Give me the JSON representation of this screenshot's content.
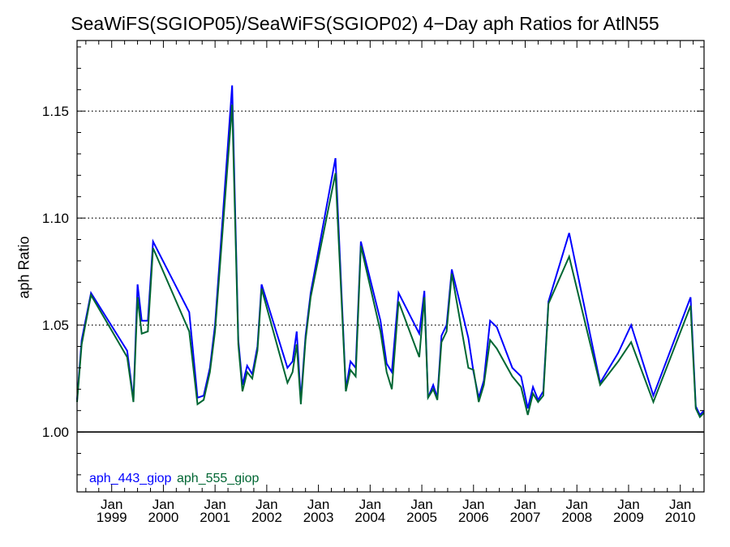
{
  "chart_data": {
    "type": "line",
    "title": "SeaWiFS(SGIOP05)/SeaWiFS(SGIOP02) 4−Day aph Ratios for AtlN55",
    "xlabel": "",
    "ylabel": "aph Ratio",
    "ylim": [
      0.972,
      1.183
    ],
    "xlim": [
      1998.33,
      2010.46
    ],
    "yticks": [
      1.0,
      1.05,
      1.1,
      1.15
    ],
    "ytick_labels": [
      "1.00",
      "1.05",
      "1.10",
      "1.15"
    ],
    "xticks": [
      {
        "month": "Jan",
        "year": "1999",
        "x": 1999.0
      },
      {
        "month": "Jan",
        "year": "2000",
        "x": 2000.0
      },
      {
        "month": "Jan",
        "year": "2001",
        "x": 2001.0
      },
      {
        "month": "Jan",
        "year": "2002",
        "x": 2002.0
      },
      {
        "month": "Jan",
        "year": "2003",
        "x": 2003.0
      },
      {
        "month": "Jan",
        "year": "2004",
        "x": 2004.0
      },
      {
        "month": "Jan",
        "year": "2005",
        "x": 2005.0
      },
      {
        "month": "Jan",
        "year": "2006",
        "x": 2006.0
      },
      {
        "month": "Jan",
        "year": "2007",
        "x": 2007.0
      },
      {
        "month": "Jan",
        "year": "2008",
        "x": 2008.0
      },
      {
        "month": "Jan",
        "year": "2009",
        "x": 2009.0
      },
      {
        "month": "Jan",
        "year": "2010",
        "x": 2010.0
      }
    ],
    "grid": "horizontal dotted",
    "reference_line": 1.0,
    "legend_position": "bottom-left",
    "series": [
      {
        "name": "aph_443_giop",
        "color": "#0000ff",
        "points": [
          [
            1998.33,
            1.015
          ],
          [
            1998.42,
            1.043
          ],
          [
            1998.6,
            1.065
          ],
          [
            1999.3,
            1.038
          ],
          [
            1999.42,
            1.015
          ],
          [
            1999.5,
            1.069
          ],
          [
            1999.58,
            1.052
          ],
          [
            1999.7,
            1.052
          ],
          [
            1999.8,
            1.089
          ],
          [
            2000.5,
            1.056
          ],
          [
            2000.66,
            1.016
          ],
          [
            2000.78,
            1.017
          ],
          [
            2000.9,
            1.03
          ],
          [
            2001.0,
            1.05
          ],
          [
            2001.33,
            1.162
          ],
          [
            2001.45,
            1.043
          ],
          [
            2001.53,
            1.022
          ],
          [
            2001.62,
            1.031
          ],
          [
            2001.72,
            1.027
          ],
          [
            2001.82,
            1.04
          ],
          [
            2001.9,
            1.069
          ],
          [
            2002.4,
            1.03
          ],
          [
            2002.5,
            1.033
          ],
          [
            2002.58,
            1.047
          ],
          [
            2002.66,
            1.015
          ],
          [
            2002.75,
            1.045
          ],
          [
            2002.85,
            1.065
          ],
          [
            2003.33,
            1.128
          ],
          [
            2003.53,
            1.02
          ],
          [
            2003.62,
            1.033
          ],
          [
            2003.72,
            1.03
          ],
          [
            2003.82,
            1.089
          ],
          [
            2004.2,
            1.052
          ],
          [
            2004.32,
            1.032
          ],
          [
            2004.42,
            1.028
          ],
          [
            2004.55,
            1.065
          ],
          [
            2004.95,
            1.046
          ],
          [
            2005.05,
            1.066
          ],
          [
            2005.12,
            1.016
          ],
          [
            2005.22,
            1.022
          ],
          [
            2005.3,
            1.016
          ],
          [
            2005.38,
            1.045
          ],
          [
            2005.48,
            1.05
          ],
          [
            2005.58,
            1.076
          ],
          [
            2005.9,
            1.044
          ],
          [
            2006.0,
            1.028
          ],
          [
            2006.1,
            1.016
          ],
          [
            2006.2,
            1.024
          ],
          [
            2006.32,
            1.052
          ],
          [
            2006.45,
            1.049
          ],
          [
            2006.75,
            1.03
          ],
          [
            2006.92,
            1.026
          ],
          [
            2007.05,
            1.011
          ],
          [
            2007.15,
            1.021
          ],
          [
            2007.25,
            1.015
          ],
          [
            2007.35,
            1.019
          ],
          [
            2007.45,
            1.061
          ],
          [
            2007.85,
            1.093
          ],
          [
            2008.45,
            1.023
          ],
          [
            2008.8,
            1.037
          ],
          [
            2009.05,
            1.05
          ],
          [
            2009.48,
            1.017
          ],
          [
            2010.2,
            1.063
          ],
          [
            2010.3,
            1.012
          ],
          [
            2010.38,
            1.008
          ],
          [
            2010.46,
            1.01
          ]
        ]
      },
      {
        "name": "aph_555_giop",
        "color": "#006633",
        "points": [
          [
            1998.33,
            1.014
          ],
          [
            1998.42,
            1.041
          ],
          [
            1998.6,
            1.064
          ],
          [
            1999.3,
            1.035
          ],
          [
            1999.42,
            1.014
          ],
          [
            1999.5,
            1.063
          ],
          [
            1999.58,
            1.046
          ],
          [
            1999.7,
            1.047
          ],
          [
            1999.8,
            1.086
          ],
          [
            2000.5,
            1.047
          ],
          [
            2000.66,
            1.013
          ],
          [
            2000.78,
            1.015
          ],
          [
            2000.9,
            1.028
          ],
          [
            2001.0,
            1.047
          ],
          [
            2001.33,
            1.153
          ],
          [
            2001.45,
            1.041
          ],
          [
            2001.53,
            1.019
          ],
          [
            2001.62,
            1.028
          ],
          [
            2001.72,
            1.025
          ],
          [
            2001.82,
            1.038
          ],
          [
            2001.9,
            1.067
          ],
          [
            2002.4,
            1.023
          ],
          [
            2002.5,
            1.028
          ],
          [
            2002.58,
            1.041
          ],
          [
            2002.66,
            1.013
          ],
          [
            2002.75,
            1.043
          ],
          [
            2002.85,
            1.063
          ],
          [
            2003.33,
            1.121
          ],
          [
            2003.53,
            1.019
          ],
          [
            2003.62,
            1.029
          ],
          [
            2003.72,
            1.026
          ],
          [
            2003.82,
            1.087
          ],
          [
            2004.2,
            1.047
          ],
          [
            2004.32,
            1.028
          ],
          [
            2004.42,
            1.02
          ],
          [
            2004.55,
            1.061
          ],
          [
            2004.95,
            1.035
          ],
          [
            2005.05,
            1.063
          ],
          [
            2005.12,
            1.016
          ],
          [
            2005.22,
            1.02
          ],
          [
            2005.3,
            1.015
          ],
          [
            2005.38,
            1.042
          ],
          [
            2005.48,
            1.047
          ],
          [
            2005.58,
            1.074
          ],
          [
            2005.9,
            1.03
          ],
          [
            2006.0,
            1.029
          ],
          [
            2006.1,
            1.014
          ],
          [
            2006.2,
            1.022
          ],
          [
            2006.32,
            1.043
          ],
          [
            2006.45,
            1.039
          ],
          [
            2006.75,
            1.026
          ],
          [
            2006.92,
            1.021
          ],
          [
            2007.05,
            1.008
          ],
          [
            2007.15,
            1.018
          ],
          [
            2007.25,
            1.014
          ],
          [
            2007.35,
            1.017
          ],
          [
            2007.45,
            1.06
          ],
          [
            2007.85,
            1.082
          ],
          [
            2008.45,
            1.022
          ],
          [
            2008.8,
            1.033
          ],
          [
            2009.05,
            1.042
          ],
          [
            2009.48,
            1.014
          ],
          [
            2010.2,
            1.059
          ],
          [
            2010.3,
            1.011
          ],
          [
            2010.38,
            1.007
          ],
          [
            2010.46,
            1.009
          ]
        ]
      }
    ]
  }
}
